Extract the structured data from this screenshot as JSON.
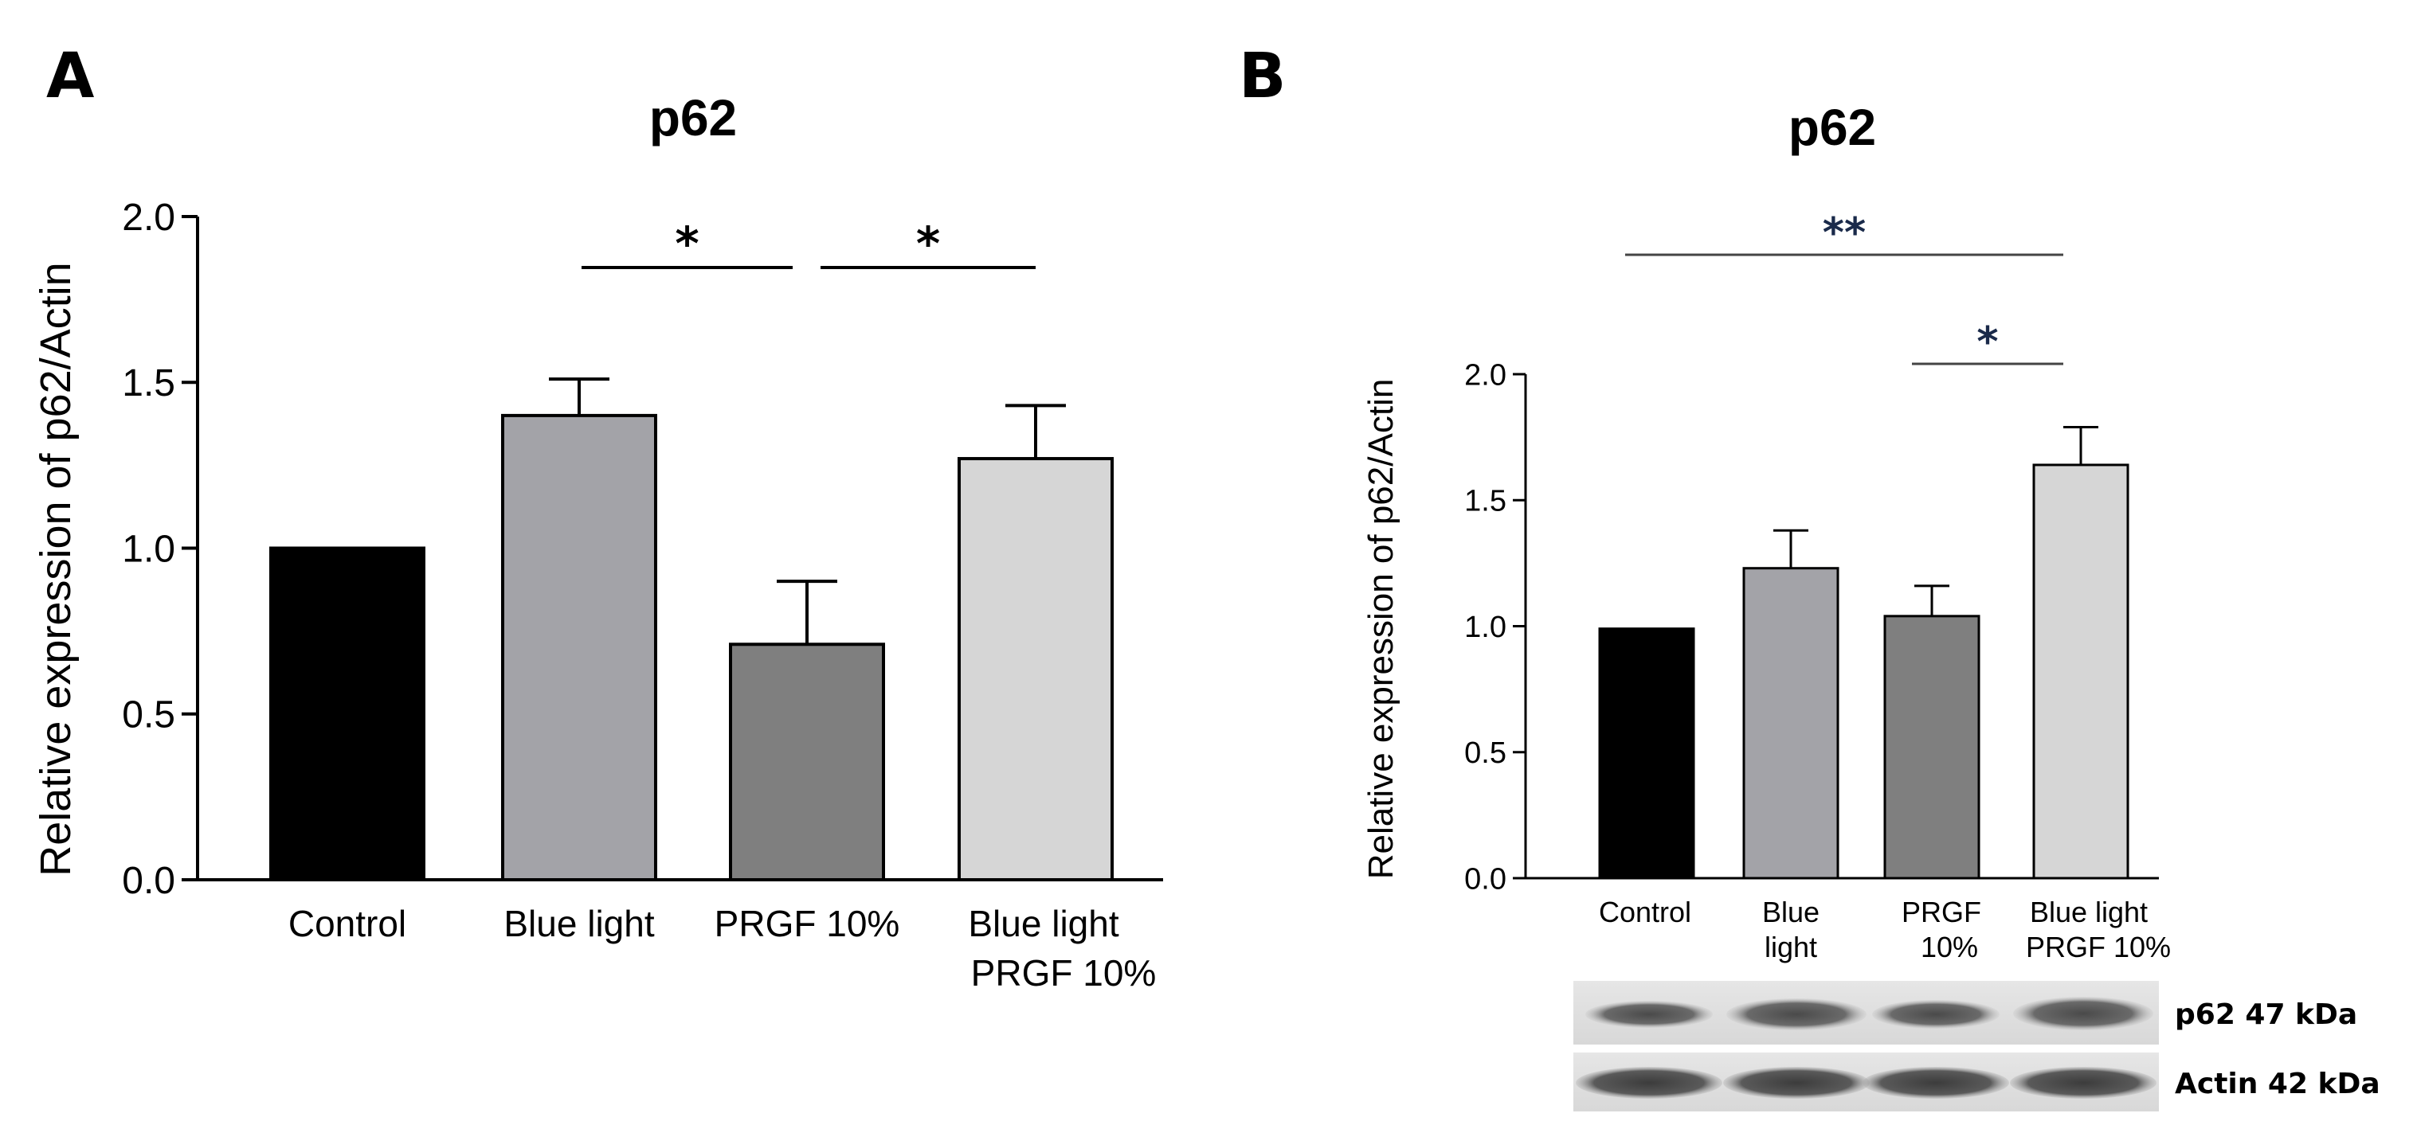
{
  "panels": {
    "a": {
      "letter": "A"
    },
    "b": {
      "letter": "B"
    }
  },
  "chart_data": [
    {
      "type": "bar",
      "title": "p62",
      "ylabel": "Relative expression of p62/Actin",
      "xlabel": "",
      "ylim": [
        0,
        2.0
      ],
      "yticks": [
        "0.0",
        "0.5",
        "1.0",
        "1.5",
        "2.0"
      ],
      "categories": [
        [
          "Control"
        ],
        [
          "Blue light"
        ],
        [
          "PRGF  10%"
        ],
        [
          "Blue light",
          "PRGF 10%"
        ]
      ],
      "values": [
        1.0,
        1.4,
        0.71,
        1.27
      ],
      "errors": [
        0,
        0.11,
        0.19,
        0.16
      ],
      "colors": [
        "#000000",
        "#a3a3a8",
        "#7f7f7f",
        "#d6d6d6"
      ],
      "significance": [
        {
          "from": 1,
          "to": 2,
          "label": "*"
        },
        {
          "from": 2,
          "to": 3,
          "label": "*"
        }
      ]
    },
    {
      "type": "bar",
      "title": "p62",
      "ylabel": "Relative expression of p62/Actin",
      "xlabel": "",
      "ylim": [
        0,
        2.0
      ],
      "yticks": [
        "0.0",
        "0.5",
        "1.0",
        "1.5",
        "2.0"
      ],
      "categories": [
        [
          "Control"
        ],
        [
          "Blue",
          "light"
        ],
        [
          "PRGF",
          "10%"
        ],
        [
          "Blue light",
          "PRGF  10%"
        ]
      ],
      "values": [
        0.99,
        1.23,
        1.04,
        1.64
      ],
      "errors": [
        0,
        0.15,
        0.12,
        0.15
      ],
      "colors": [
        "#000000",
        "#a3a3a8",
        "#7f7f7f",
        "#d6d6d6"
      ],
      "significance": [
        {
          "from": 0,
          "to": 3,
          "label": "**"
        },
        {
          "from": 2,
          "to": 3,
          "label": "*"
        }
      ]
    }
  ],
  "blot": {
    "labels": [
      "p62 47 kDa",
      "Actin 42 kDa"
    ]
  }
}
